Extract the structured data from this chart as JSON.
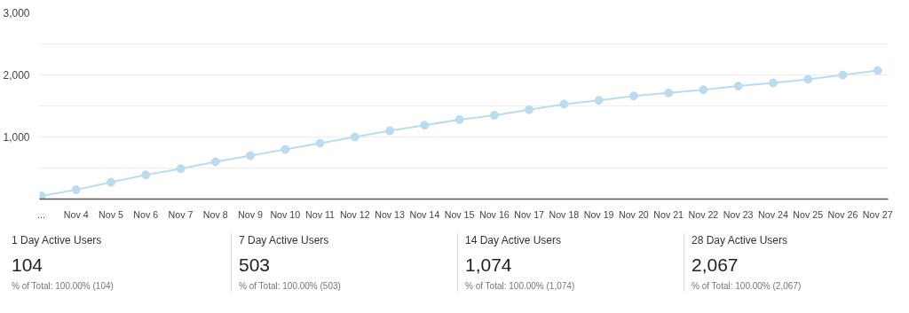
{
  "chart_data": {
    "type": "line",
    "categories": [
      "...",
      "Nov 4",
      "Nov 5",
      "Nov 6",
      "Nov 7",
      "Nov 8",
      "Nov 9",
      "Nov 10",
      "Nov 11",
      "Nov 12",
      "Nov 13",
      "Nov 14",
      "Nov 15",
      "Nov 16",
      "Nov 17",
      "Nov 18",
      "Nov 19",
      "Nov 20",
      "Nov 21",
      "Nov 22",
      "Nov 23",
      "Nov 24",
      "Nov 25",
      "Nov 26",
      "Nov 27"
    ],
    "series": [
      {
        "color": "#bcdcee",
        "values": [
          50,
          150,
          270,
          390,
          490,
          600,
          700,
          800,
          900,
          1000,
          1100,
          1190,
          1280,
          1350,
          1440,
          1530,
          1590,
          1660,
          1710,
          1760,
          1820,
          1870,
          1930,
          2000,
          2070
        ]
      }
    ],
    "ylim": [
      0,
      3000
    ],
    "yticks": [
      {
        "value": 0,
        "label": null
      },
      {
        "value": 500,
        "label": null
      },
      {
        "value": 1000,
        "label": "1,000"
      },
      {
        "value": 1500,
        "label": null
      },
      {
        "value": 2000,
        "label": "2,000"
      },
      {
        "value": 2500,
        "label": null
      },
      {
        "value": 3000,
        "label": "3,000"
      }
    ],
    "grid": "y",
    "marker": "circle",
    "line_style": "solid",
    "annotations": [
      "1 Day Active Users",
      "104",
      "% of Total: 100.00% (104)",
      "7 Day Active Users",
      "503",
      "% of Total: 100.00% (503)",
      "14 Day Active Users",
      "1,074",
      "% of Total: 100.00% (1,074)",
      "28 Day Active Users",
      "2,067",
      "% of Total: 100.00% (2,067)"
    ]
  }
}
